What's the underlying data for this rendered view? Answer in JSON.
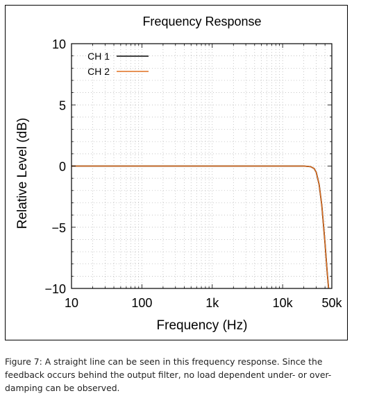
{
  "chart_data": {
    "type": "line",
    "title": "Frequency Response",
    "xlabel": "Frequency (Hz)",
    "ylabel": "Relative Level (dB)",
    "x_scale": "log",
    "xlim": [
      10,
      50000
    ],
    "ylim": [
      -10,
      10
    ],
    "x_ticks": [
      10,
      100,
      1000,
      10000,
      50000
    ],
    "x_tick_labels": [
      "10",
      "100",
      "1k",
      "10k",
      "50k"
    ],
    "y_ticks": [
      10,
      5,
      0,
      -5,
      -10
    ],
    "y_tick_labels": [
      "10",
      "5",
      "0",
      "−5",
      "−10"
    ],
    "grid": true,
    "legend_position": "top-left",
    "series": [
      {
        "name": "CH 1",
        "color": "#000000",
        "x": [
          10,
          20,
          50,
          100,
          1000,
          10000,
          20000,
          25000,
          28000,
          30000,
          33000,
          36000,
          40000,
          43000,
          45000
        ],
        "y": [
          0,
          0,
          0,
          0,
          0,
          0,
          0,
          -0.05,
          -0.2,
          -0.5,
          -1.5,
          -3.2,
          -6.3,
          -8.7,
          -10
        ]
      },
      {
        "name": "CH 2",
        "color": "#e07020",
        "x": [
          10,
          20,
          50,
          100,
          1000,
          10000,
          20000,
          25000,
          28000,
          30000,
          33000,
          36000,
          40000,
          43000,
          45000
        ],
        "y": [
          0,
          0,
          0,
          0,
          0,
          0,
          0,
          -0.05,
          -0.2,
          -0.5,
          -1.5,
          -3.2,
          -6.3,
          -8.7,
          -10
        ]
      }
    ]
  },
  "caption": "Figure 7: A straight line can be seen in this frequency response. Since the feedback occurs behind the output filter, no load dependent under- or over-damping can be observed."
}
